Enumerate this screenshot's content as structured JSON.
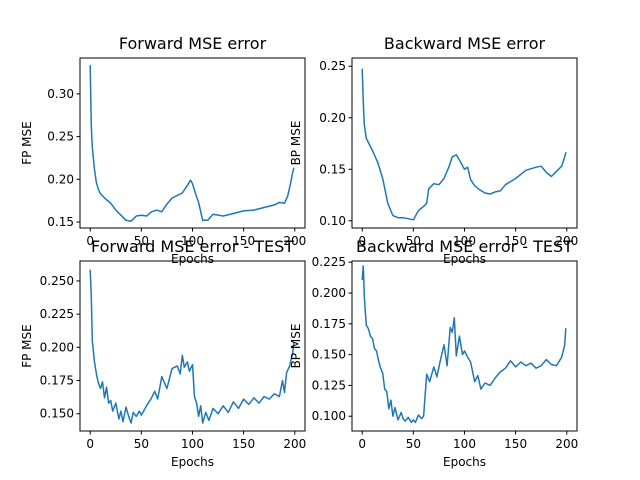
{
  "chart_data": [
    {
      "type": "line",
      "title": "Forward MSE error",
      "xlabel": "Epochs",
      "ylabel": "FP MSE",
      "xlim": [
        -10,
        210
      ],
      "ylim": [
        0.143,
        0.342
      ],
      "xticks": [
        0,
        50,
        100,
        150,
        200
      ],
      "yticks": [
        0.15,
        0.2,
        0.25,
        0.3
      ],
      "ytick_labels": [
        "0.15",
        "0.20",
        "0.25",
        "0.30"
      ],
      "grid": false,
      "series": [
        {
          "x": [
            0,
            1,
            2,
            4,
            6,
            8,
            10,
            15,
            20,
            25,
            30,
            35,
            40,
            45,
            50,
            55,
            60,
            65,
            70,
            75,
            80,
            85,
            90,
            95,
            98,
            100,
            103,
            106,
            110,
            115,
            120,
            130,
            140,
            150,
            160,
            170,
            180,
            185,
            190,
            193,
            196,
            198,
            199
          ],
          "y": [
            0.333,
            0.262,
            0.238,
            0.213,
            0.196,
            0.188,
            0.183,
            0.177,
            0.172,
            0.164,
            0.158,
            0.152,
            0.151,
            0.157,
            0.158,
            0.157,
            0.162,
            0.164,
            0.162,
            0.171,
            0.178,
            0.181,
            0.184,
            0.193,
            0.199,
            0.195,
            0.183,
            0.173,
            0.152,
            0.152,
            0.159,
            0.157,
            0.16,
            0.163,
            0.164,
            0.167,
            0.17,
            0.173,
            0.172,
            0.18,
            0.196,
            0.208,
            0.213
          ]
        }
      ]
    },
    {
      "type": "line",
      "title": "Backward MSE error",
      "xlabel": "Epochs",
      "ylabel": "BP MSE",
      "xlim": [
        -10,
        210
      ],
      "ylim": [
        0.093,
        0.258
      ],
      "xticks": [
        0,
        50,
        100,
        150,
        200
      ],
      "yticks": [
        0.1,
        0.15,
        0.2,
        0.25
      ],
      "ytick_labels": [
        "0.10",
        "0.15",
        "0.20",
        "0.25"
      ],
      "grid": false,
      "series": [
        {
          "x": [
            0,
            1,
            2,
            4,
            6,
            10,
            15,
            20,
            25,
            30,
            35,
            40,
            45,
            50,
            55,
            60,
            63,
            65,
            70,
            75,
            80,
            85,
            88,
            92,
            95,
            100,
            103,
            106,
            110,
            115,
            120,
            125,
            130,
            135,
            140,
            150,
            160,
            170,
            175,
            180,
            185,
            190,
            195,
            198,
            199
          ],
          "y": [
            0.247,
            0.215,
            0.193,
            0.18,
            0.176,
            0.168,
            0.157,
            0.141,
            0.117,
            0.105,
            0.103,
            0.103,
            0.102,
            0.101,
            0.11,
            0.114,
            0.117,
            0.131,
            0.136,
            0.135,
            0.141,
            0.153,
            0.162,
            0.164,
            0.159,
            0.15,
            0.152,
            0.14,
            0.134,
            0.13,
            0.127,
            0.126,
            0.128,
            0.129,
            0.135,
            0.141,
            0.149,
            0.152,
            0.153,
            0.147,
            0.143,
            0.148,
            0.153,
            0.162,
            0.166
          ]
        }
      ]
    },
    {
      "type": "line",
      "title": "Forward MSE error - TEST",
      "xlabel": "Epochs",
      "ylabel": "FP MSE",
      "xlim": [
        -10,
        210
      ],
      "ylim": [
        0.137,
        0.265
      ],
      "xticks": [
        0,
        50,
        100,
        150,
        200
      ],
      "yticks": [
        0.15,
        0.175,
        0.2,
        0.225,
        0.25
      ],
      "ytick_labels": [
        "0.150",
        "0.175",
        "0.200",
        "0.225",
        "0.250"
      ],
      "grid": false,
      "series": [
        {
          "x": [
            0,
            1,
            2,
            4,
            6,
            8,
            10,
            12,
            14,
            16,
            18,
            20,
            22,
            25,
            28,
            30,
            32,
            35,
            38,
            40,
            42,
            45,
            48,
            50,
            55,
            60,
            63,
            66,
            70,
            75,
            80,
            85,
            88,
            90,
            92,
            95,
            97,
            100,
            102,
            104,
            106,
            108,
            110,
            113,
            116,
            120,
            125,
            130,
            135,
            140,
            145,
            150,
            155,
            160,
            165,
            170,
            175,
            180,
            185,
            188,
            190,
            192,
            195,
            198,
            199
          ],
          "y": [
            0.258,
            0.238,
            0.205,
            0.19,
            0.18,
            0.173,
            0.169,
            0.174,
            0.162,
            0.17,
            0.158,
            0.16,
            0.152,
            0.158,
            0.146,
            0.152,
            0.144,
            0.155,
            0.147,
            0.143,
            0.151,
            0.148,
            0.152,
            0.149,
            0.156,
            0.162,
            0.167,
            0.161,
            0.178,
            0.169,
            0.184,
            0.186,
            0.18,
            0.194,
            0.185,
            0.189,
            0.182,
            0.187,
            0.163,
            0.158,
            0.148,
            0.156,
            0.143,
            0.151,
            0.145,
            0.154,
            0.15,
            0.156,
            0.151,
            0.159,
            0.154,
            0.161,
            0.157,
            0.162,
            0.158,
            0.163,
            0.161,
            0.165,
            0.163,
            0.175,
            0.166,
            0.181,
            0.186,
            0.196,
            0.203
          ]
        }
      ]
    },
    {
      "type": "line",
      "title": "Backward MSE error - TEST",
      "xlabel": "Epochs",
      "ylabel": "BP MSE",
      "xlim": [
        -10,
        210
      ],
      "ylim": [
        0.088,
        0.226
      ],
      "xticks": [
        0,
        50,
        100,
        150,
        200
      ],
      "yticks": [
        0.1,
        0.125,
        0.15,
        0.175,
        0.2,
        0.225
      ],
      "ytick_labels": [
        "0.100",
        "0.125",
        "0.150",
        "0.175",
        "0.200",
        "0.225"
      ],
      "grid": false,
      "series": [
        {
          "x": [
            0,
            1,
            2,
            3,
            4,
            6,
            8,
            10,
            12,
            14,
            16,
            18,
            20,
            22,
            24,
            26,
            28,
            30,
            32,
            35,
            38,
            40,
            42,
            45,
            48,
            50,
            52,
            55,
            58,
            60,
            63,
            66,
            70,
            73,
            76,
            80,
            83,
            86,
            88,
            90,
            92,
            95,
            98,
            100,
            103,
            106,
            110,
            113,
            116,
            120,
            125,
            130,
            135,
            140,
            145,
            150,
            155,
            160,
            165,
            170,
            175,
            180,
            185,
            190,
            195,
            198,
            199
          ],
          "y": [
            0.211,
            0.222,
            0.198,
            0.185,
            0.174,
            0.171,
            0.165,
            0.163,
            0.155,
            0.153,
            0.145,
            0.139,
            0.135,
            0.122,
            0.12,
            0.106,
            0.113,
            0.1,
            0.107,
            0.097,
            0.103,
            0.098,
            0.096,
            0.099,
            0.095,
            0.097,
            0.095,
            0.101,
            0.098,
            0.1,
            0.134,
            0.128,
            0.14,
            0.132,
            0.144,
            0.158,
            0.141,
            0.172,
            0.168,
            0.18,
            0.149,
            0.165,
            0.15,
            0.153,
            0.148,
            0.144,
            0.128,
            0.133,
            0.122,
            0.127,
            0.125,
            0.131,
            0.136,
            0.139,
            0.145,
            0.14,
            0.144,
            0.141,
            0.143,
            0.139,
            0.141,
            0.146,
            0.142,
            0.141,
            0.148,
            0.158,
            0.171
          ]
        }
      ]
    }
  ]
}
